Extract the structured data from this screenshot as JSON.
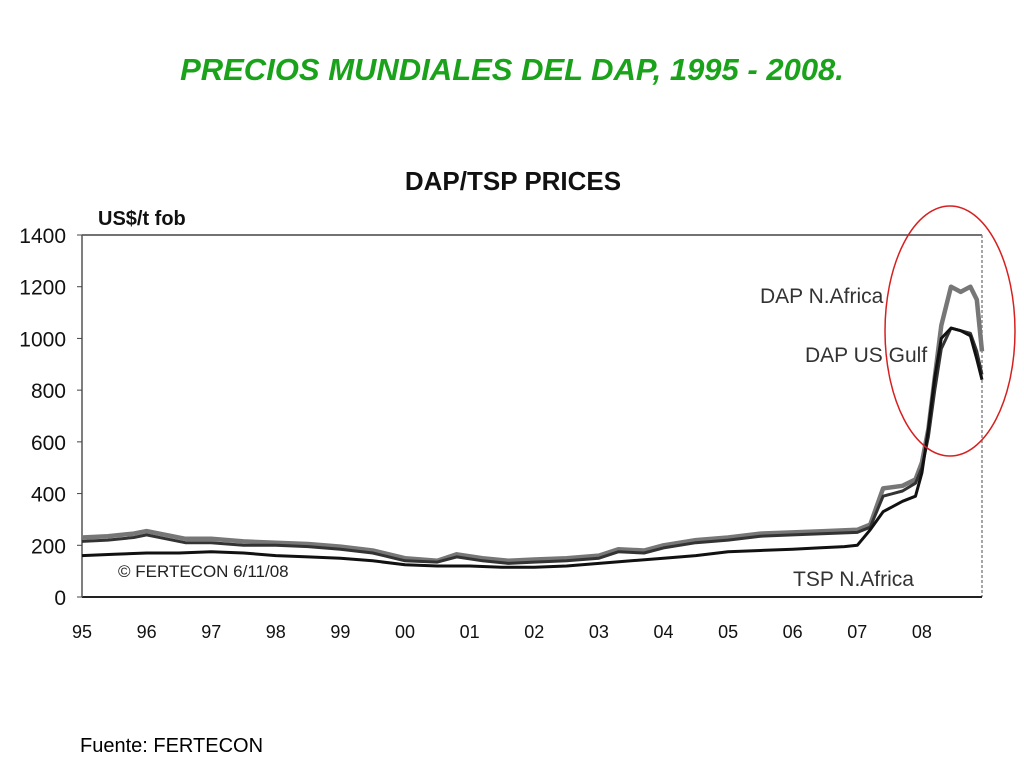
{
  "slide": {
    "title": "PRECIOS MUNDIALES DEL DAP, 1995 - 2008.",
    "source": "Fuente: FERTECON"
  },
  "chart_data": {
    "type": "line",
    "title": "DAP/TSP PRICES",
    "unit_label": "US$/t fob",
    "copyright": "© FERTECON 6/11/08",
    "ylim": [
      0,
      1400
    ],
    "yticks": [
      0,
      200,
      400,
      600,
      800,
      1000,
      1200,
      1400
    ],
    "xlim": [
      1995,
      2008.93
    ],
    "xticks": [
      {
        "x": 1995,
        "label": "95"
      },
      {
        "x": 1996,
        "label": "96"
      },
      {
        "x": 1997,
        "label": "97"
      },
      {
        "x": 1998,
        "label": "98"
      },
      {
        "x": 1999,
        "label": "99"
      },
      {
        "x": 2000,
        "label": "00"
      },
      {
        "x": 2001,
        "label": "01"
      },
      {
        "x": 2002,
        "label": "02"
      },
      {
        "x": 2003,
        "label": "03"
      },
      {
        "x": 2004,
        "label": "04"
      },
      {
        "x": 2005,
        "label": "05"
      },
      {
        "x": 2006,
        "label": "06"
      },
      {
        "x": 2007,
        "label": "07"
      },
      {
        "x": 2008,
        "label": "08"
      }
    ],
    "grid": false,
    "highlight": "ellipse around 2008 peak",
    "highlight_color": "#d62020",
    "series": [
      {
        "name": "DAP N.Africa",
        "color": "#777777",
        "x": [
          1995,
          1995.4,
          1995.8,
          1996,
          1996.3,
          1996.6,
          1997,
          1997.5,
          1998,
          1998.5,
          1999,
          1999.5,
          2000,
          2000.5,
          2000.8,
          2001.2,
          2001.6,
          2002,
          2002.5,
          2003,
          2003.3,
          2003.7,
          2004,
          2004.5,
          2005,
          2005.5,
          2006,
          2006.5,
          2007,
          2007.2,
          2007.4,
          2007.7,
          2007.9,
          2008,
          2008.1,
          2008.2,
          2008.3,
          2008.45,
          2008.6,
          2008.75,
          2008.85,
          2008.93
        ],
        "y": [
          230,
          235,
          245,
          255,
          240,
          225,
          225,
          215,
          210,
          205,
          195,
          180,
          150,
          140,
          165,
          150,
          140,
          145,
          150,
          160,
          185,
          180,
          200,
          220,
          230,
          245,
          250,
          255,
          260,
          280,
          420,
          430,
          455,
          520,
          650,
          850,
          1050,
          1200,
          1180,
          1200,
          1150,
          950
        ]
      },
      {
        "name": "DAP US Gulf",
        "color": "#333333",
        "x": [
          1995,
          1995.4,
          1995.8,
          1996,
          1996.3,
          1996.6,
          1997,
          1997.5,
          1998,
          1998.5,
          1999,
          1999.5,
          2000,
          2000.5,
          2000.8,
          2001.2,
          2001.6,
          2002,
          2002.5,
          2003,
          2003.3,
          2003.7,
          2004,
          2004.5,
          2005,
          2005.5,
          2006,
          2006.5,
          2007,
          2007.2,
          2007.4,
          2007.7,
          2007.9,
          2008,
          2008.1,
          2008.2,
          2008.3,
          2008.45,
          2008.6,
          2008.75,
          2008.85,
          2008.93
        ],
        "y": [
          215,
          220,
          230,
          240,
          225,
          210,
          210,
          200,
          200,
          195,
          185,
          170,
          140,
          135,
          155,
          140,
          130,
          135,
          140,
          150,
          175,
          170,
          190,
          210,
          220,
          235,
          240,
          245,
          250,
          270,
          390,
          410,
          440,
          500,
          620,
          800,
          960,
          1040,
          1030,
          1020,
          950,
          860
        ]
      },
      {
        "name": "TSP N.Africa",
        "color": "#111111",
        "x": [
          1995,
          1995.5,
          1996,
          1996.5,
          1997,
          1997.5,
          1998,
          1998.5,
          1999,
          1999.5,
          2000,
          2000.5,
          2001,
          2001.5,
          2002,
          2002.5,
          2003,
          2003.5,
          2004,
          2004.5,
          2005,
          2005.5,
          2006,
          2006.4,
          2006.8,
          2007,
          2007.2,
          2007.4,
          2007.7,
          2007.9,
          2008,
          2008.1,
          2008.2,
          2008.3,
          2008.45,
          2008.6,
          2008.75,
          2008.85,
          2008.93
        ],
        "y": [
          160,
          165,
          170,
          170,
          175,
          170,
          160,
          155,
          150,
          140,
          125,
          120,
          120,
          115,
          115,
          120,
          130,
          140,
          150,
          160,
          175,
          180,
          185,
          190,
          195,
          200,
          260,
          330,
          370,
          390,
          480,
          650,
          850,
          1000,
          1040,
          1030,
          1010,
          920,
          840
        ]
      }
    ]
  }
}
